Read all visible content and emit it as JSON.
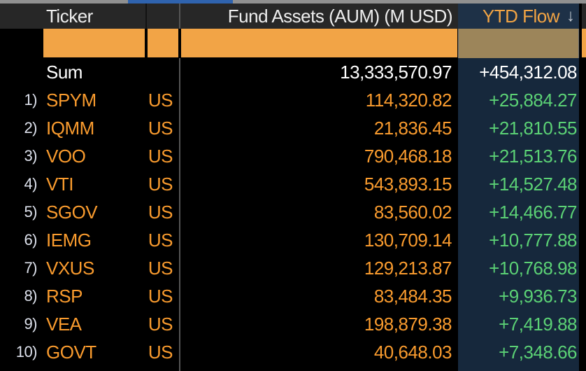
{
  "topbar": {
    "scrollbar_track_color": "#909090",
    "scrollbar_thumb_color": "#2f63ae"
  },
  "header": {
    "ticker_label": "Ticker",
    "exchange_label": "",
    "aum_label": "Fund Assets (AUM) (M USD)",
    "ytd_flow_label": "YTD Flow",
    "sort_arrow": "↓"
  },
  "filters": {
    "ticker_value": "",
    "exchange_value": "",
    "aum_value": "",
    "ytd_flow_value": ""
  },
  "sum_row": {
    "label": "Sum",
    "aum": "13,333,570.97",
    "ytd_flow": "+454,312.08"
  },
  "rows": [
    {
      "num": "1)",
      "ticker": "SPYM",
      "exchange": "US",
      "aum": "114,320.82",
      "ytd_flow": "+25,884.27"
    },
    {
      "num": "2)",
      "ticker": "IQMM",
      "exchange": "US",
      "aum": "21,836.45",
      "ytd_flow": "+21,810.55"
    },
    {
      "num": "3)",
      "ticker": "VOO",
      "exchange": "US",
      "aum": "790,468.18",
      "ytd_flow": "+21,513.76"
    },
    {
      "num": "4)",
      "ticker": "VTI",
      "exchange": "US",
      "aum": "543,893.15",
      "ytd_flow": "+14,527.48"
    },
    {
      "num": "5)",
      "ticker": "SGOV",
      "exchange": "US",
      "aum": "83,560.02",
      "ytd_flow": "+14,466.77"
    },
    {
      "num": "6)",
      "ticker": "IEMG",
      "exchange": "US",
      "aum": "130,709.14",
      "ytd_flow": "+10,777.88"
    },
    {
      "num": "7)",
      "ticker": "VXUS",
      "exchange": "US",
      "aum": "129,213.87",
      "ytd_flow": "+10,768.98"
    },
    {
      "num": "8)",
      "ticker": "RSP",
      "exchange": "US",
      "aum": "83,484.35",
      "ytd_flow": "+9,936.73"
    },
    {
      "num": "9)",
      "ticker": "VEA",
      "exchange": "US",
      "aum": "198,879.38",
      "ytd_flow": "+7,419.88"
    },
    {
      "num": "10)",
      "ticker": "GOVT",
      "exchange": "US",
      "aum": "40,648.03",
      "ytd_flow": "+7,348.66"
    }
  ],
  "colors": {
    "amber_text": "#f99b2e",
    "green_text": "#5bd175",
    "header_bg": "#272727",
    "sorted_column_header_bg": "#1e3147",
    "sorted_column_bg": "#16283c",
    "filter_box_orange": "#f2a446",
    "filter_box_tan": "#9c855a"
  }
}
